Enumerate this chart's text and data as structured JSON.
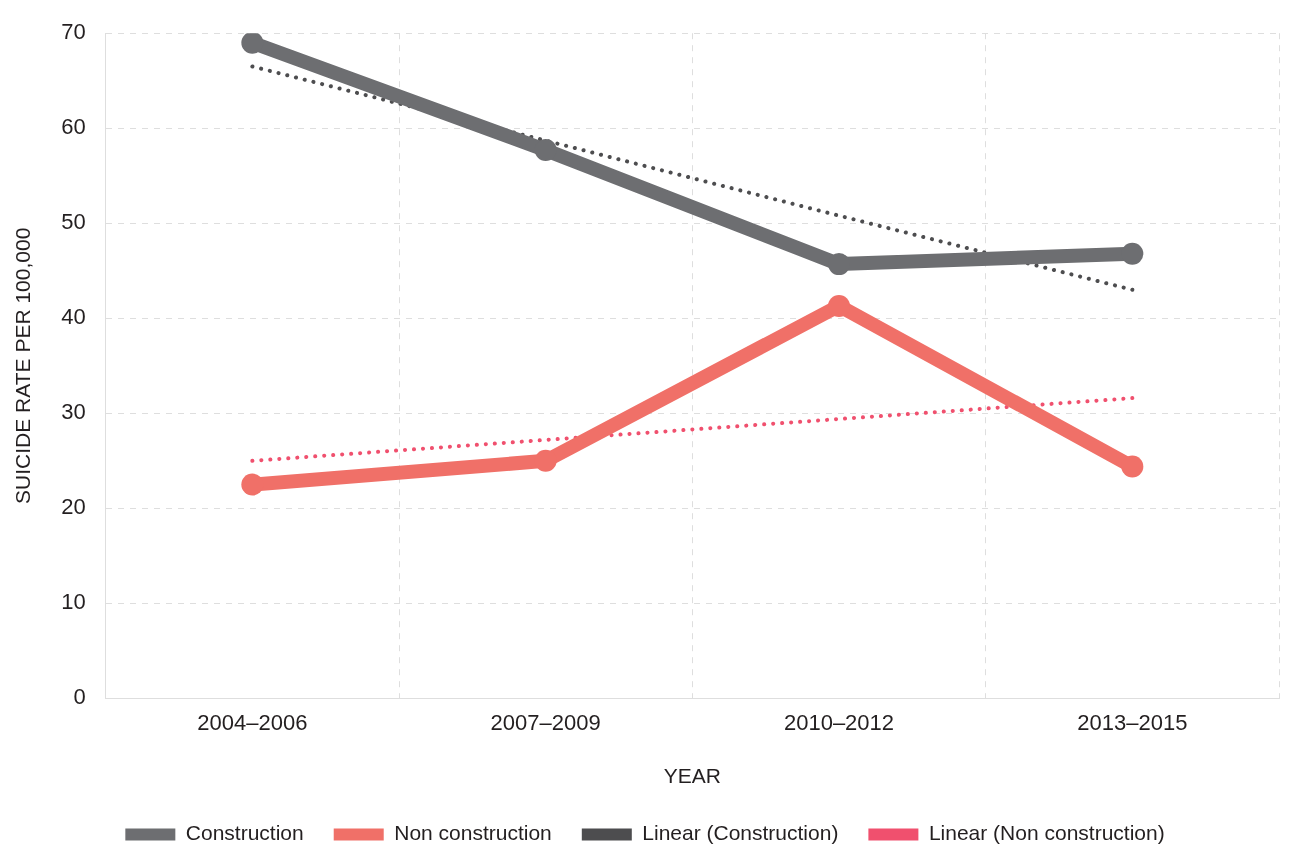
{
  "chart_data": {
    "type": "line",
    "xlabel": "YEAR",
    "ylabel": "SUICIDE RATE PER 100,000",
    "categories": [
      "2004–2006",
      "2007–2009",
      "2010–2012",
      "2013–2015"
    ],
    "series": [
      {
        "name": "Construction",
        "color": "#6d6e71",
        "values": [
          69,
          57.7,
          45.7,
          46.8
        ],
        "marker": "circle",
        "line_style": "solid"
      },
      {
        "name": "Non construction",
        "color": "#f07068",
        "values": [
          22.5,
          25,
          41.3,
          24.4
        ],
        "marker": "circle",
        "line_style": "solid"
      },
      {
        "name": "Linear (Construction)",
        "color": "#4d4d4f",
        "values": [
          66.5,
          58.7,
          50.8,
          43
        ],
        "marker": "none",
        "line_style": "dotted"
      },
      {
        "name": "Linear (Non construction)",
        "color": "#f0506e",
        "values": [
          25,
          27.2,
          29.4,
          31.6
        ],
        "marker": "none",
        "line_style": "dotted"
      }
    ],
    "ylim": [
      0,
      70
    ],
    "yticks": [
      0,
      10,
      20,
      30,
      40,
      50,
      60,
      70
    ],
    "grid": true,
    "legend": "bottom"
  }
}
